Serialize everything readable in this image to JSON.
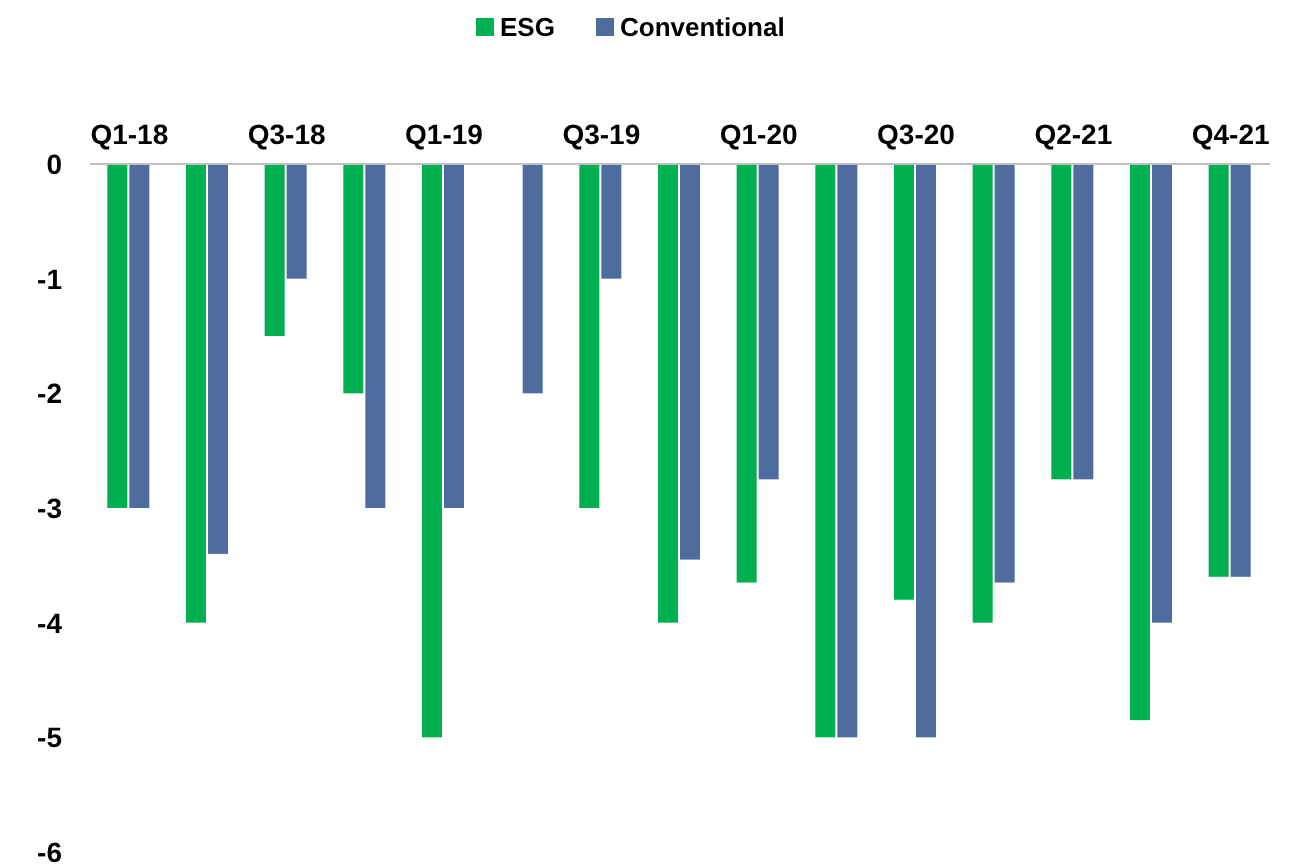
{
  "chart_data": {
    "type": "bar",
    "categories": [
      "Q1-18",
      null,
      "Q3-18",
      null,
      "Q1-19",
      null,
      "Q3-19",
      null,
      "Q1-20",
      null,
      "Q3-20",
      null,
      "Q2-21",
      null,
      "Q4-21"
    ],
    "series": [
      {
        "name": "ESG",
        "color": "#00b050",
        "values": [
          -3,
          -4,
          -1.5,
          -2,
          -5,
          null,
          -3,
          -4,
          -3.65,
          -5,
          -3.8,
          -4,
          -2.75,
          -4.85,
          -3.6
        ]
      },
      {
        "name": "Conventional",
        "color": "#4f6c9f",
        "values": [
          -3,
          -3.4,
          -1,
          -3,
          -3,
          -2,
          -1,
          -3.45,
          -2.75,
          -5,
          -5,
          -3.65,
          -2.75,
          -4,
          -3.6
        ]
      }
    ],
    "ylim": [
      -6,
      0
    ],
    "yticks": [
      0,
      -1,
      -2,
      -3,
      -4,
      -5,
      -6
    ],
    "grid": false,
    "legend": "top"
  }
}
